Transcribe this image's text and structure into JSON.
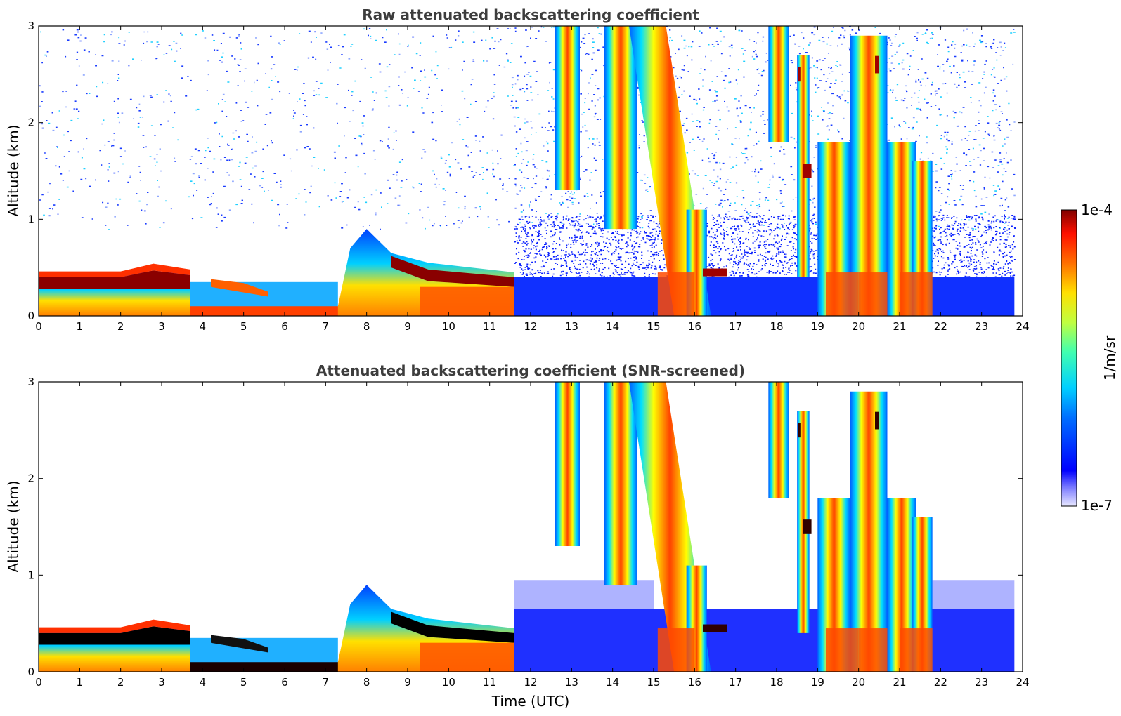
{
  "chart_data": [
    {
      "type": "heatmap",
      "title": "Raw attenuated backscattering coefficient",
      "xlabel": "",
      "ylabel": "Altitude (km)",
      "xlim": [
        0,
        24
      ],
      "ylim": [
        0,
        3
      ],
      "xticks": [
        "0",
        "1",
        "2",
        "3",
        "4",
        "5",
        "6",
        "7",
        "8",
        "9",
        "10",
        "11",
        "12",
        "13",
        "14",
        "15",
        "16",
        "17",
        "18",
        "19",
        "20",
        "21",
        "22",
        "23",
        "24"
      ],
      "yticks": [
        "0",
        "1",
        "2",
        "3"
      ],
      "features": [
        {
          "kind": "boundary_layer",
          "x": [
            0,
            3.7
          ],
          "top_km": 0.45,
          "value": "high"
        },
        {
          "kind": "boundary_layer",
          "x": [
            3.7,
            7.3
          ],
          "top_km": 0.35,
          "value": "medium"
        },
        {
          "kind": "boundary_layer",
          "x": [
            7.3,
            11.6
          ],
          "top_km": 0.85,
          "value": "high"
        },
        {
          "kind": "precipitation",
          "x_center": [
            12.6,
            15.9,
            19.2,
            20.5,
            21.4
          ],
          "value": "high"
        }
      ]
    },
    {
      "type": "heatmap",
      "title": "Attenuated backscattering coefficient (SNR-screened)",
      "xlabel": "Time (UTC)",
      "ylabel": "Altitude (km)",
      "xlim": [
        0,
        24
      ],
      "ylim": [
        0,
        3
      ],
      "xticks": [
        "0",
        "1",
        "2",
        "3",
        "4",
        "5",
        "6",
        "7",
        "8",
        "9",
        "10",
        "11",
        "12",
        "13",
        "14",
        "15",
        "16",
        "17",
        "18",
        "19",
        "20",
        "21",
        "22",
        "23",
        "24"
      ],
      "yticks": [
        "0",
        "1",
        "2",
        "3"
      ]
    }
  ],
  "colorbar": {
    "label": "1/m/sr",
    "max_label": "1e-4",
    "min_label": "1e-7",
    "range": [
      1e-07,
      0.0001
    ],
    "scale": "log",
    "colormap": "jet"
  }
}
